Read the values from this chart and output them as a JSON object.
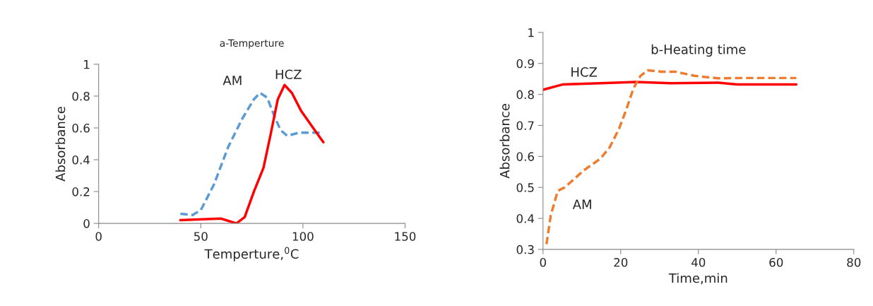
{
  "chart_data": [
    {
      "type": "line",
      "title": "a-Temperture",
      "xlabel": "Temperture,$^{0}$C",
      "ylabel": "Absorbance",
      "xlim": [
        0,
        150
      ],
      "xticks": [
        0,
        50,
        100,
        150
      ],
      "ylim": [
        0,
        1
      ],
      "yticks": [
        0,
        0.2,
        0.4,
        0.6,
        0.8,
        1
      ],
      "grid": false,
      "legend": false,
      "series": [
        {
          "color": "#5b9bd5",
          "line_style": "dashed",
          "x": [
            40,
            46,
            50,
            56.5,
            63.4,
            70.4,
            76,
            79,
            82.5,
            86,
            89,
            92.3,
            98,
            104,
            108.4
          ],
          "values": [
            0.06,
            0.053,
            0.083,
            0.246,
            0.48,
            0.66,
            0.78,
            0.82,
            0.79,
            0.675,
            0.587,
            0.55,
            0.57,
            0.57,
            0.57
          ]
        },
        {
          "color": "#ff0000",
          "line_style": "solid",
          "x": [
            40,
            60,
            63.4,
            67.5,
            71.5,
            76,
            80.7,
            84.2,
            87.7,
            91,
            94.6,
            99.2,
            105,
            110
          ],
          "values": [
            0.02,
            0.03,
            0.016,
            0.0,
            0.04,
            0.2,
            0.35,
            0.56,
            0.78,
            0.87,
            0.82,
            0.705,
            0.6,
            0.51
          ]
        }
      ],
      "annotations": [
        {
          "text": "AM",
          "x": 79,
          "y": 0.82
        },
        {
          "text": "HCZ",
          "x": 91,
          "y": 0.87
        }
      ]
    },
    {
      "type": "line",
      "title": "b-Heating time",
      "xlabel": "Time,min",
      "ylabel": "Absorbance",
      "xlim": [
        0,
        80
      ],
      "xticks": [
        0,
        20,
        40,
        60,
        80
      ],
      "ylim": [
        0.3,
        1
      ],
      "yticks": [
        0.3,
        0.4,
        0.5,
        0.6,
        0.7,
        0.8,
        0.9,
        1
      ],
      "grid": false,
      "legend": false,
      "series": [
        {
          "color": "#ff0000",
          "line_style": "solid",
          "x": [
            0,
            5,
            14.8,
            23.9,
            33,
            45.1,
            50,
            65.2
          ],
          "values": [
            0.815,
            0.832,
            0.836,
            0.84,
            0.836,
            0.838,
            0.832,
            0.832
          ]
        },
        {
          "color": "#ed7d31",
          "line_style": "dashed",
          "x": [
            0.9,
            2,
            3.8,
            5.6,
            10.5,
            14.8,
            17.2,
            19.6,
            21.4,
            23.3,
            25.1,
            26.9,
            30.5,
            34.2,
            39,
            45.1,
            51.2,
            65.2
          ],
          "values": [
            0.317,
            0.41,
            0.489,
            0.5,
            0.555,
            0.593,
            0.63,
            0.69,
            0.75,
            0.82,
            0.86,
            0.878,
            0.873,
            0.873,
            0.86,
            0.852,
            0.853,
            0.853
          ]
        }
      ],
      "annotations": [
        {
          "text": "HCZ",
          "x": 5,
          "y": 0.832
        },
        {
          "text": "AM",
          "x": 5.6,
          "y": 0.5
        }
      ]
    }
  ]
}
